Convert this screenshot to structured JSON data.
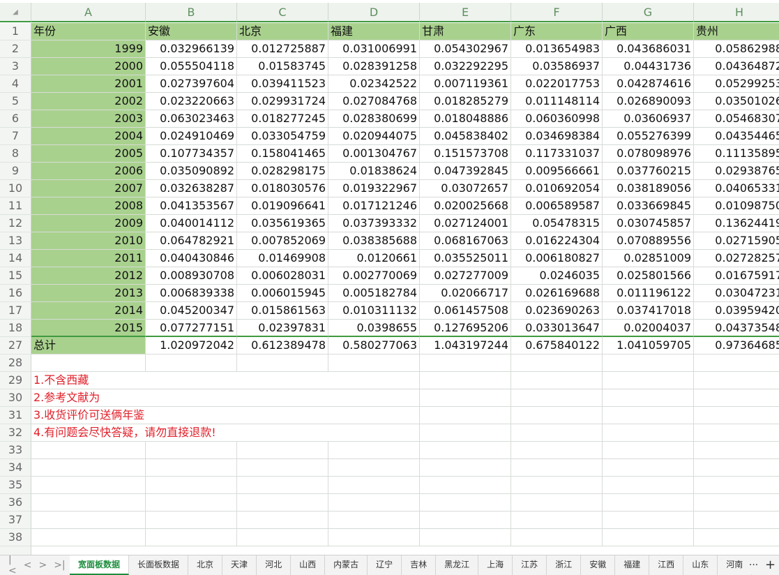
{
  "column_headers": [
    "A",
    "B",
    "C",
    "D",
    "E",
    "F",
    "G",
    "H"
  ],
  "table": {
    "header": {
      "row_number": "1",
      "cells": [
        "年份",
        "安徽",
        "北京",
        "福建",
        "甘肃",
        "广东",
        "广西",
        "贵州"
      ]
    },
    "rows": [
      {
        "row_number": "2",
        "cells": [
          "1999",
          "0.032966139",
          "0.012725887",
          "0.031006991",
          "0.054302967",
          "0.013654983",
          "0.043686031",
          "0.05862988"
        ]
      },
      {
        "row_number": "3",
        "cells": [
          "2000",
          "0.055504118",
          "0.01583745",
          "0.028391258",
          "0.032292295",
          "0.03586937",
          "0.04431736",
          "0.04364872"
        ]
      },
      {
        "row_number": "4",
        "cells": [
          "2001",
          "0.027397604",
          "0.039411523",
          "0.02342522",
          "0.007119361",
          "0.022017753",
          "0.042874616",
          "0.05299253"
        ]
      },
      {
        "row_number": "5",
        "cells": [
          "2002",
          "0.023220663",
          "0.029931724",
          "0.027084768",
          "0.018285279",
          "0.011148114",
          "0.026890093",
          "0.03501026"
        ]
      },
      {
        "row_number": "6",
        "cells": [
          "2003",
          "0.063023463",
          "0.018277245",
          "0.028380699",
          "0.018048886",
          "0.060360998",
          "0.03606937",
          "0.05468307"
        ]
      },
      {
        "row_number": "7",
        "cells": [
          "2004",
          "0.024910469",
          "0.033054759",
          "0.020944075",
          "0.045838402",
          "0.034698384",
          "0.055276399",
          "0.04354465"
        ]
      },
      {
        "row_number": "8",
        "cells": [
          "2005",
          "0.107734357",
          "0.158041465",
          "0.001304767",
          "0.151573708",
          "0.117331037",
          "0.078098976",
          "0.11135895"
        ]
      },
      {
        "row_number": "9",
        "cells": [
          "2006",
          "0.035090892",
          "0.028298175",
          "0.01838624",
          "0.047392845",
          "0.009566661",
          "0.037760215",
          "0.02938765"
        ]
      },
      {
        "row_number": "10",
        "cells": [
          "2007",
          "0.032638287",
          "0.018030576",
          "0.019322967",
          "0.03072657",
          "0.010692054",
          "0.038189056",
          "0.04065331"
        ]
      },
      {
        "row_number": "11",
        "cells": [
          "2008",
          "0.041353567",
          "0.019096641",
          "0.017121246",
          "0.020025668",
          "0.006589587",
          "0.033669845",
          "0.01098750"
        ]
      },
      {
        "row_number": "12",
        "cells": [
          "2009",
          "0.040014112",
          "0.035619365",
          "0.037393332",
          "0.027124001",
          "0.05478315",
          "0.030745857",
          "0.13624419"
        ]
      },
      {
        "row_number": "13",
        "cells": [
          "2010",
          "0.064782921",
          "0.007852069",
          "0.038385688",
          "0.068167063",
          "0.016224304",
          "0.070889556",
          "0.02715905"
        ]
      },
      {
        "row_number": "14",
        "cells": [
          "2011",
          "0.040430846",
          "0.01469908",
          "0.0120661",
          "0.035525011",
          "0.006180827",
          "0.02851009",
          "0.02728257"
        ]
      },
      {
        "row_number": "15",
        "cells": [
          "2012",
          "0.008930708",
          "0.006028031",
          "0.002770069",
          "0.027277009",
          "0.0246035",
          "0.025801566",
          "0.01675917"
        ]
      },
      {
        "row_number": "16",
        "cells": [
          "2013",
          "0.006839338",
          "0.006015945",
          "0.005182784",
          "0.02066717",
          "0.026169688",
          "0.011196122",
          "0.03047231"
        ]
      },
      {
        "row_number": "17",
        "cells": [
          "2014",
          "0.045200347",
          "0.015861563",
          "0.010311132",
          "0.061457508",
          "0.023690263",
          "0.037417018",
          "0.03959420"
        ]
      },
      {
        "row_number": "18",
        "cells": [
          "2015",
          "0.077277151",
          "0.02397831",
          "0.0398655",
          "0.127695206",
          "0.033013647",
          "0.02004037",
          "0.04373548"
        ]
      }
    ],
    "total": {
      "row_number": "27",
      "cells": [
        "总计",
        "1.020972042",
        "0.612389478",
        "0.580277063",
        "1.043197244",
        "0.675840122",
        "1.041059705",
        "0.97364685"
      ]
    }
  },
  "empty_rows_before_notes": [
    "28"
  ],
  "notes": [
    {
      "row_number": "29",
      "text": "1.不含西藏"
    },
    {
      "row_number": "30",
      "text": "2.参考文献为"
    },
    {
      "row_number": "31",
      "text": "3.收货评价可送俩年鉴"
    },
    {
      "row_number": "32",
      "text": "4.有问题会尽快答疑，请勿直接退款!"
    }
  ],
  "empty_rows_after_notes": [
    "33",
    "34",
    "35",
    "36",
    "37",
    "38"
  ],
  "sheet_tabs": [
    "宽面板数据",
    "长面板数据",
    "北京",
    "天津",
    "河北",
    "山西",
    "内蒙古",
    "辽宁",
    "吉林",
    "黑龙江",
    "上海",
    "江苏",
    "浙江",
    "安徽",
    "福建",
    "江西",
    "山东",
    "河南"
  ],
  "active_tab": 0
}
